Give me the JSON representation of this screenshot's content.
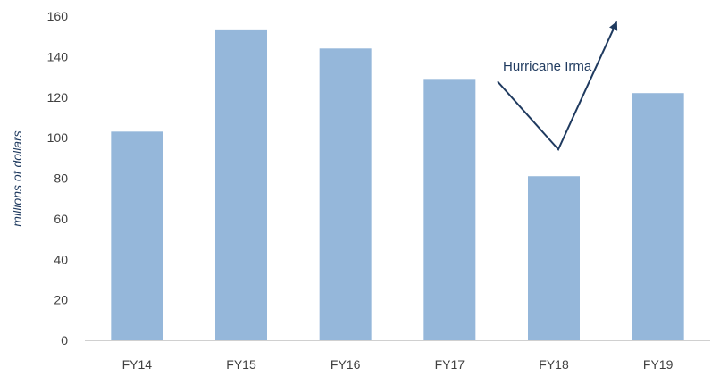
{
  "chart_data": {
    "type": "bar",
    "categories": [
      "FY14",
      "FY15",
      "FY16",
      "FY17",
      "FY18",
      "FY19"
    ],
    "values": [
      103,
      153,
      144,
      129,
      81,
      122
    ],
    "title": "",
    "xlabel": "",
    "ylabel": "millions of dollars",
    "ylim": [
      0,
      160
    ],
    "yticks": [
      0,
      20,
      40,
      60,
      80,
      100,
      120,
      140,
      160
    ],
    "grid": false,
    "legend": "none",
    "bar_color": "#95b7da",
    "annotations": [
      {
        "text": "Hurricane Irma",
        "category": "FY18",
        "arrow": "V-shaped arrow dipping to FY18 and rising toward FY19"
      }
    ]
  },
  "colors": {
    "bar": "#95b7da",
    "axis": "#d0d0d0",
    "annotation": "#1f3a5f",
    "tick_text": "#404040"
  }
}
